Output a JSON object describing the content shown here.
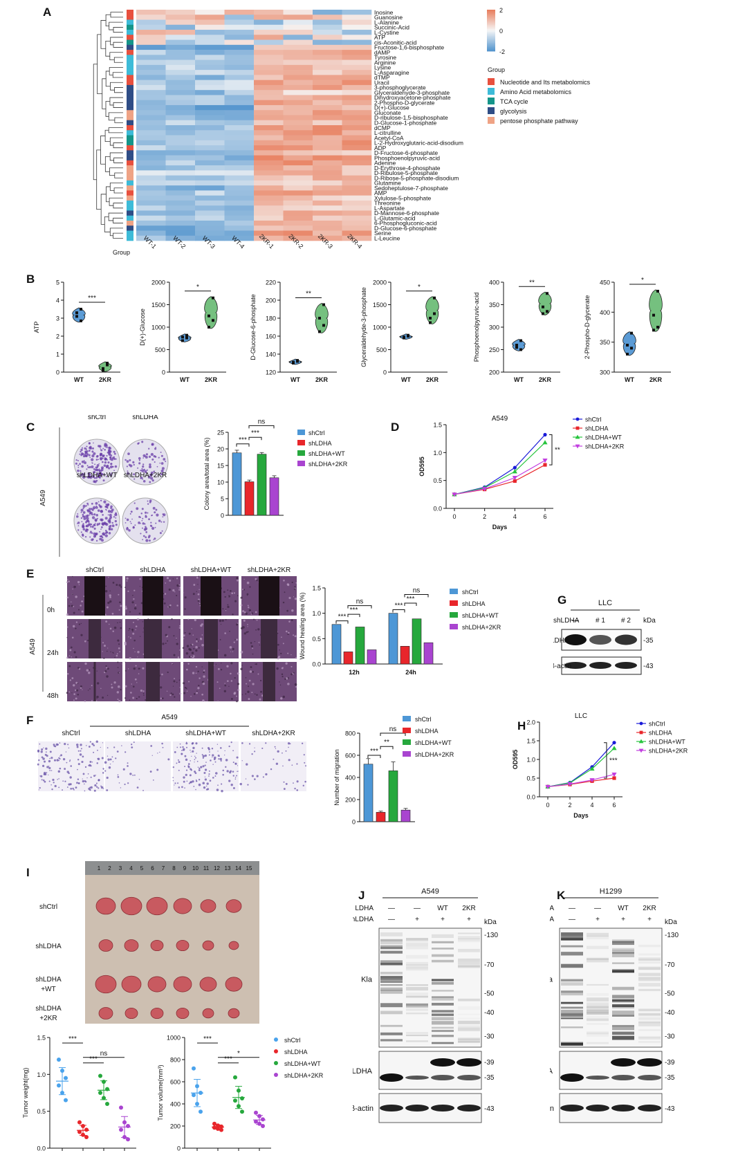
{
  "panels": {
    "A": {
      "label": "A",
      "group_axis_label": "Group",
      "samples": [
        "WT-1",
        "WT-2",
        "WT-3",
        "WT-4",
        "2KR-1",
        "2KR-2",
        "2KR-3",
        "2KR-4"
      ],
      "metabolites": [
        "Inosine",
        "Guanosine",
        "L-Alanine",
        "Succinic-Acid",
        "L-Cystine",
        "ATP",
        "cis-Aconitic-acid",
        "Fructose-1,6-bisphosphate",
        "dAMP",
        "Tyrosine",
        "Arginine",
        "Lysine",
        "L-Asparagine",
        "dTMP",
        "Uracil",
        "3-phosphoglycerate",
        "Glyceraldehyde-3-phosphate",
        "Dihydroxyacetone-phosphate",
        "2-Phospho-D-glycerate",
        "D(+)-Glucose",
        "Gluconate",
        "D-ribulose-1,5-bisphosphate",
        "D-Glucose-1-phosphate",
        "dCMP",
        "L-citrulline",
        "Acetyl-CoA",
        "L-2-Hydroxyglutaric-acid-disodium",
        "ADP",
        "D-Fructose-6-phosphate",
        "Phosphoenolpyruvic-acid",
        "Adenine",
        "D-Erythrose-4-phosphate",
        "D-Ribulose-5-phosphate",
        "D-Ribose-5-phosphate-disodium",
        "Glutamine",
        "Sedoheptulose-7-phosphate",
        "AMP",
        "Xylulose-5-phosphate",
        "Threonine",
        "L-Aspartate",
        "D-Mannose-6-phosphate",
        "L-Glutamic-acid",
        "6-Phosphogluconic-acid",
        "D-Glucose-6-phosphate",
        "Serine",
        "L-Leucine"
      ],
      "row_groups": [
        "nuc",
        "nuc",
        "aa",
        "tca",
        "aa",
        "nuc",
        "tca",
        "gly",
        "nuc",
        "aa",
        "aa",
        "aa",
        "aa",
        "nuc",
        "nuc",
        "gly",
        "gly",
        "gly",
        "gly",
        "gly",
        "ppp",
        "ppp",
        "gly",
        "nuc",
        "aa",
        "tca",
        "tca",
        "nuc",
        "gly",
        "gly",
        "nuc",
        "ppp",
        "ppp",
        "ppp",
        "aa",
        "ppp",
        "nuc",
        "ppp",
        "aa",
        "aa",
        "gly",
        "aa",
        "ppp",
        "gly",
        "aa",
        "aa"
      ],
      "colorbar_ticks": [
        "2",
        "0",
        "-2"
      ],
      "legend_title": "Group",
      "legend": [
        {
          "key": "nuc",
          "label": "Nucleotide and Its metabolomics",
          "color": "#e8503e"
        },
        {
          "key": "aa",
          "label": "Amino Acid metabolomics",
          "color": "#3dbbd8"
        },
        {
          "key": "tca",
          "label": "TCA cycle",
          "color": "#15958a"
        },
        {
          "key": "gly",
          "label": "glycolysis",
          "color": "#2f4d86"
        },
        {
          "key": "ppp",
          "label": "pentose phosphate pathway",
          "color": "#efa385"
        }
      ]
    },
    "B": {
      "label": "B",
      "charts": [
        {
          "ylabel": "ATP",
          "ylim": [
            0,
            5
          ],
          "ticks": [
            0,
            1,
            2,
            3,
            4,
            5
          ],
          "categories": [
            "WT",
            "2KR"
          ],
          "wt": [
            3.1,
            3.5,
            3.3,
            2.85
          ],
          "kr": [
            0.1,
            0.4,
            0.2,
            0.5
          ],
          "sig": "***"
        },
        {
          "ylabel": "D(+)-Glucose",
          "ylim": [
            0,
            2000
          ],
          "ticks": [
            0,
            500,
            1000,
            1500,
            2000
          ],
          "categories": [
            "WT",
            "2KR"
          ],
          "wt": [
            780,
            820,
            700,
            760
          ],
          "kr": [
            1000,
            1650,
            1250,
            1150
          ],
          "sig": "*"
        },
        {
          "ylabel": "D-Glucose-6-phosphate",
          "ylim": [
            120,
            220
          ],
          "ticks": [
            120,
            140,
            160,
            180,
            200,
            220
          ],
          "categories": [
            "WT",
            "2KR"
          ],
          "wt": [
            131,
            133,
            130,
            132
          ],
          "kr": [
            165,
            195,
            180,
            172
          ],
          "sig": "**"
        },
        {
          "ylabel": "Glyceraldehyde-3-phosphate",
          "ylim": [
            0,
            2000
          ],
          "ticks": [
            0,
            500,
            1000,
            1500,
            2000
          ],
          "categories": [
            "WT",
            "2KR"
          ],
          "wt": [
            780,
            820,
            760,
            800
          ],
          "kr": [
            1100,
            1650,
            1200,
            1300
          ],
          "sig": "*"
        },
        {
          "ylabel": "Phosphoenolpyruvic-acid",
          "ylim": [
            200,
            400
          ],
          "ticks": [
            200,
            250,
            300,
            350,
            400
          ],
          "categories": [
            "WT",
            "2KR"
          ],
          "wt": [
            255,
            270,
            260,
            250
          ],
          "kr": [
            330,
            375,
            345,
            335
          ],
          "sig": "**"
        },
        {
          "ylabel": "2-Phospho-D-glycerate",
          "ylim": [
            300,
            450
          ],
          "ticks": [
            300,
            350,
            400,
            450
          ],
          "categories": [
            "WT",
            "2KR"
          ],
          "wt": [
            330,
            365,
            345,
            340
          ],
          "kr": [
            370,
            435,
            395,
            375
          ],
          "sig": "*"
        }
      ]
    },
    "C": {
      "label": "C",
      "cell_line": "A549",
      "dish_labels": [
        "shCtrl",
        "shLDHA",
        "shLDHA+WT",
        "shLDHA+2KR"
      ],
      "chart_data": {
        "type": "bar",
        "categories": [
          "shCtrl",
          "shLDHA",
          "shLDHA+WT",
          "shLDHA+2KR"
        ],
        "values": [
          18.8,
          10.1,
          18.4,
          11.3
        ],
        "errors": [
          0.8,
          0.5,
          0.5,
          0.6
        ],
        "ylabel": "Colony area/total area (%)",
        "ylim": [
          0,
          25
        ],
        "ticks": [
          0,
          5,
          10,
          15,
          20,
          25
        ],
        "sig": [
          "***",
          "***",
          "ns"
        ],
        "colors": [
          "#4d97d6",
          "#e8262b",
          "#26a83d",
          "#a944d0"
        ]
      }
    },
    "D": {
      "label": "D",
      "chart_data": {
        "type": "line",
        "title": "A549",
        "x": [
          0,
          2,
          4,
          6
        ],
        "xlabel": "Days",
        "ylabel": "OD595",
        "ylim": [
          0,
          1.5
        ],
        "ticks": [
          0.0,
          0.5,
          1.0,
          1.5
        ],
        "sig": "**",
        "series": [
          {
            "name": "shCtrl",
            "values": [
              0.25,
              0.38,
              0.73,
              1.32
            ],
            "color": "#1a1ad8",
            "marker": "circle"
          },
          {
            "name": "shLDHA",
            "values": [
              0.25,
              0.34,
              0.49,
              0.78
            ],
            "color": "#e8262b",
            "marker": "square"
          },
          {
            "name": "shLDHA+WT",
            "values": [
              0.25,
              0.37,
              0.66,
              1.18
            ],
            "color": "#26c43d",
            "marker": "triangle"
          },
          {
            "name": "shLDHA+2KR",
            "values": [
              0.25,
              0.35,
              0.55,
              0.86
            ],
            "color": "#c23ee0",
            "marker": "triangle-down"
          }
        ]
      }
    },
    "E": {
      "label": "E",
      "cell_line": "A549",
      "columns": [
        "shCtrl",
        "shLDHA",
        "shLDHA+WT",
        "shLDHA+2KR"
      ],
      "rows": [
        "0h",
        "24h",
        "48h"
      ],
      "chart_data": {
        "type": "bar",
        "categories": [
          "12h",
          "24h"
        ],
        "ylabel": "Wound healing area (%)",
        "ylim": [
          0,
          1.5
        ],
        "ticks": [
          0.0,
          0.5,
          1.0,
          1.5
        ],
        "series": [
          {
            "name": "shCtrl",
            "values": [
              0.78,
              1.0
            ],
            "color": "#4d97d6"
          },
          {
            "name": "shLDHA",
            "values": [
              0.24,
              0.35
            ],
            "color": "#e8262b"
          },
          {
            "name": "shLDHA+WT",
            "values": [
              0.73,
              0.89
            ],
            "color": "#26a83d"
          },
          {
            "name": "shLDHA+2KR",
            "values": [
              0.28,
              0.42
            ],
            "color": "#a944d0"
          }
        ],
        "sig": [
          "***",
          "***",
          "ns"
        ]
      }
    },
    "F": {
      "label": "F",
      "cell_line": "A549",
      "columns": [
        "shCtrl",
        "shLDHA",
        "shLDHA+WT",
        "shLDHA+2KR"
      ],
      "chart_data": {
        "type": "bar",
        "categories": [
          "shCtrl",
          "shLDHA",
          "shLDHA+WT",
          "shLDHA+2KR"
        ],
        "values": [
          520,
          85,
          460,
          105
        ],
        "errors": [
          50,
          10,
          80,
          15
        ],
        "ylabel": "Number of migration",
        "ylim": [
          0,
          800
        ],
        "ticks": [
          0,
          200,
          400,
          600,
          800
        ],
        "sig": [
          "***",
          "**",
          "ns"
        ],
        "colors": [
          "#4d97d6",
          "#e8262b",
          "#26a83d",
          "#a944d0"
        ]
      }
    },
    "G": {
      "label": "G",
      "title": "LLC",
      "row_label": "shLDHA",
      "lanes": [
        "—",
        "# 1",
        "# 2"
      ],
      "kda_label": "kDa",
      "bands": [
        {
          "name": "LDHA",
          "kda": "35"
        },
        {
          "name": "β-actin",
          "kda": "43"
        }
      ]
    },
    "H": {
      "label": "H",
      "chart_data": {
        "type": "line",
        "title": "LLC",
        "x": [
          0,
          2,
          4,
          6
        ],
        "xlabel": "Days",
        "ylabel": "OD595",
        "ylim": [
          0,
          2.0
        ],
        "ticks": [
          0.0,
          0.5,
          1.0,
          1.5,
          2.0
        ],
        "sig": "***",
        "series": [
          {
            "name": "shCtrl",
            "values": [
              0.27,
              0.38,
              0.8,
              1.45
            ],
            "color": "#1a1ad8",
            "marker": "circle"
          },
          {
            "name": "shLDHA",
            "values": [
              0.27,
              0.33,
              0.42,
              0.5
            ],
            "color": "#e8262b",
            "marker": "square"
          },
          {
            "name": "shLDHA+WT",
            "values": [
              0.27,
              0.37,
              0.75,
              1.3
            ],
            "color": "#26c43d",
            "marker": "triangle"
          },
          {
            "name": "shLDHA+2KR",
            "values": [
              0.27,
              0.34,
              0.45,
              0.6
            ],
            "color": "#c23ee0",
            "marker": "triangle-down"
          }
        ]
      }
    },
    "I": {
      "label": "I",
      "row_labels": [
        "shCtrl",
        "shLDHA",
        "shLDHA\n+WT",
        "shLDHA\n+2KR"
      ],
      "ruler_ticks": [
        "1",
        "2",
        "3",
        "4",
        "5",
        "6",
        "7",
        "8",
        "9",
        "10",
        "11",
        "12",
        "13",
        "14",
        "15"
      ],
      "weight_chart": {
        "ylabel": "Tumor weight(mg)",
        "ylim": [
          0,
          1.5
        ],
        "ticks": [
          0.0,
          0.5,
          1.0,
          1.5
        ],
        "groups": [
          {
            "name": "shCtrl",
            "values": [
              1.2,
              1.05,
              0.95,
              0.85,
              0.75,
              0.65
            ],
            "color": "#4aa3ec"
          },
          {
            "name": "shLDHA",
            "values": [
              0.35,
              0.3,
              0.25,
              0.22,
              0.18,
              0.15
            ],
            "color": "#e8262b"
          },
          {
            "name": "shLDHA+WT",
            "values": [
              0.98,
              0.9,
              0.8,
              0.75,
              0.68,
              0.6
            ],
            "color": "#26a83d"
          },
          {
            "name": "shLDHA+2KR",
            "values": [
              0.55,
              0.35,
              0.3,
              0.25,
              0.15,
              0.12
            ],
            "color": "#a944d0"
          }
        ],
        "sig": [
          "***",
          "***",
          "ns"
        ]
      },
      "volume_chart": {
        "ylabel": "Tumor volume(mm³)",
        "ylim": [
          0,
          1000
        ],
        "ticks": [
          0,
          200,
          400,
          600,
          800,
          1000
        ],
        "groups": [
          {
            "name": "shCtrl",
            "values": [
              720,
              560,
              500,
              480,
              400,
              330
            ],
            "color": "#4aa3ec"
          },
          {
            "name": "shLDHA",
            "values": [
              220,
              205,
              195,
              185,
              175,
              165
            ],
            "color": "#e8262b"
          },
          {
            "name": "shLDHA+WT",
            "values": [
              640,
              520,
              450,
              430,
              380,
              330
            ],
            "color": "#26a83d"
          },
          {
            "name": "shLDHA+2KR",
            "values": [
              320,
              290,
              260,
              240,
              220,
              200
            ],
            "color": "#a944d0"
          }
        ],
        "sig": [
          "***",
          "***",
          "*"
        ]
      },
      "legend": [
        {
          "name": "shCtrl",
          "color": "#4aa3ec"
        },
        {
          "name": "shLDHA",
          "color": "#e8262b"
        },
        {
          "name": "shLDHA+WT",
          "color": "#26a83d"
        },
        {
          "name": "shLDHA+2KR",
          "color": "#a944d0"
        }
      ]
    },
    "J": {
      "label": "J",
      "title": "A549",
      "rows": [
        {
          "name": "LDHA",
          "marks": [
            "—",
            "—",
            "WT",
            "2KR"
          ]
        },
        {
          "name": "shLDHA",
          "marks": [
            "—",
            "+",
            "+",
            "+"
          ]
        }
      ],
      "kda_label": "kDa",
      "kla_label": "Kla",
      "kla_kda": [
        "130",
        "70",
        "50",
        "40",
        "30"
      ],
      "ldha_label": "LDHA",
      "ldha_kda": [
        "39",
        "35"
      ],
      "actin_label": "β-actin",
      "actin_kda": "43"
    },
    "K": {
      "label": "K",
      "title": "H1299",
      "rows": [
        {
          "name": "LDHA",
          "marks": [
            "—",
            "—",
            "WT",
            "2KR"
          ]
        },
        {
          "name": "shLDHA",
          "marks": [
            "—",
            "+",
            "+",
            "+"
          ]
        }
      ],
      "kda_label": "kDa",
      "kla_label": "Kla",
      "kla_kda": [
        "130",
        "70",
        "50",
        "40",
        "30"
      ],
      "ldha_label": "LDHA",
      "ldha_kda": [
        "39",
        "35"
      ],
      "actin_label": "β-actin",
      "actin_kda": "43"
    }
  }
}
